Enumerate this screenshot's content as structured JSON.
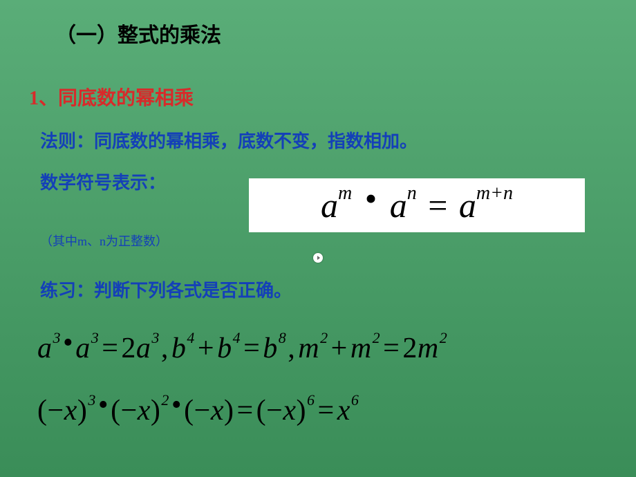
{
  "title": "（一）整式的乘法",
  "subtitle": "1、同底数的幂相乘",
  "rule": "法则：同底数的幂相乘，底数不变，指数相加。",
  "symbol_label": "数学符号表示：",
  "note": "（其中m、n为正整数）",
  "practice": "练习：判断下列各式是否正确。",
  "formula": {
    "base1": "a",
    "exp1": "m",
    "base2": "a",
    "exp2": "n",
    "base3": "a",
    "exp3": "m+n",
    "bg_color": "#ffffff",
    "text_color": "#000000",
    "fontsize": 50
  },
  "equations": {
    "row1": {
      "parts": [
        {
          "t": "var",
          "v": "a"
        },
        {
          "t": "sup",
          "v": "3"
        },
        {
          "t": "dot"
        },
        {
          "t": "var",
          "v": "a"
        },
        {
          "t": "sup",
          "v": "3"
        },
        {
          "t": "eq"
        },
        {
          "t": "num",
          "v": "2"
        },
        {
          "t": "var",
          "v": "a"
        },
        {
          "t": "sup",
          "v": "3"
        },
        {
          "t": "comma"
        },
        {
          "t": "var",
          "v": "b"
        },
        {
          "t": "sup",
          "v": "4"
        },
        {
          "t": "plus"
        },
        {
          "t": "var",
          "v": "b"
        },
        {
          "t": "sup",
          "v": "4"
        },
        {
          "t": "eq"
        },
        {
          "t": "var",
          "v": "b"
        },
        {
          "t": "sup",
          "v": "8"
        },
        {
          "t": "comma"
        },
        {
          "t": "var",
          "v": "m"
        },
        {
          "t": "sup",
          "v": "2"
        },
        {
          "t": "plus"
        },
        {
          "t": "var",
          "v": "m"
        },
        {
          "t": "sup",
          "v": "2"
        },
        {
          "t": "eq"
        },
        {
          "t": "num",
          "v": "2"
        },
        {
          "t": "var",
          "v": "m"
        },
        {
          "t": "sup",
          "v": "2"
        }
      ]
    },
    "row2": {
      "parts": [
        {
          "t": "lp"
        },
        {
          "t": "minus"
        },
        {
          "t": "var",
          "v": "x"
        },
        {
          "t": "rp"
        },
        {
          "t": "sup",
          "v": "3"
        },
        {
          "t": "dot"
        },
        {
          "t": "lp"
        },
        {
          "t": "minus"
        },
        {
          "t": "var",
          "v": "x"
        },
        {
          "t": "rp"
        },
        {
          "t": "sup",
          "v": "2"
        },
        {
          "t": "dot"
        },
        {
          "t": "lp"
        },
        {
          "t": "minus"
        },
        {
          "t": "var",
          "v": "x"
        },
        {
          "t": "rp"
        },
        {
          "t": "eq"
        },
        {
          "t": "lp"
        },
        {
          "t": "minus"
        },
        {
          "t": "var",
          "v": "x"
        },
        {
          "t": "rp"
        },
        {
          "t": "sup",
          "v": "6"
        },
        {
          "t": "eq"
        },
        {
          "t": "var",
          "v": "x"
        },
        {
          "t": "sup",
          "v": "6"
        }
      ]
    }
  },
  "colors": {
    "bg_top": "#5aad78",
    "bg_bottom": "#3a8d58",
    "title_color": "#000000",
    "subtitle_color": "#d82a2a",
    "blue_text": "#1440b8",
    "equation_color": "#000000"
  },
  "typography": {
    "title_size": 30,
    "subtitle_size": 28,
    "body_size": 26,
    "note_size": 18,
    "eq_size": 42
  }
}
